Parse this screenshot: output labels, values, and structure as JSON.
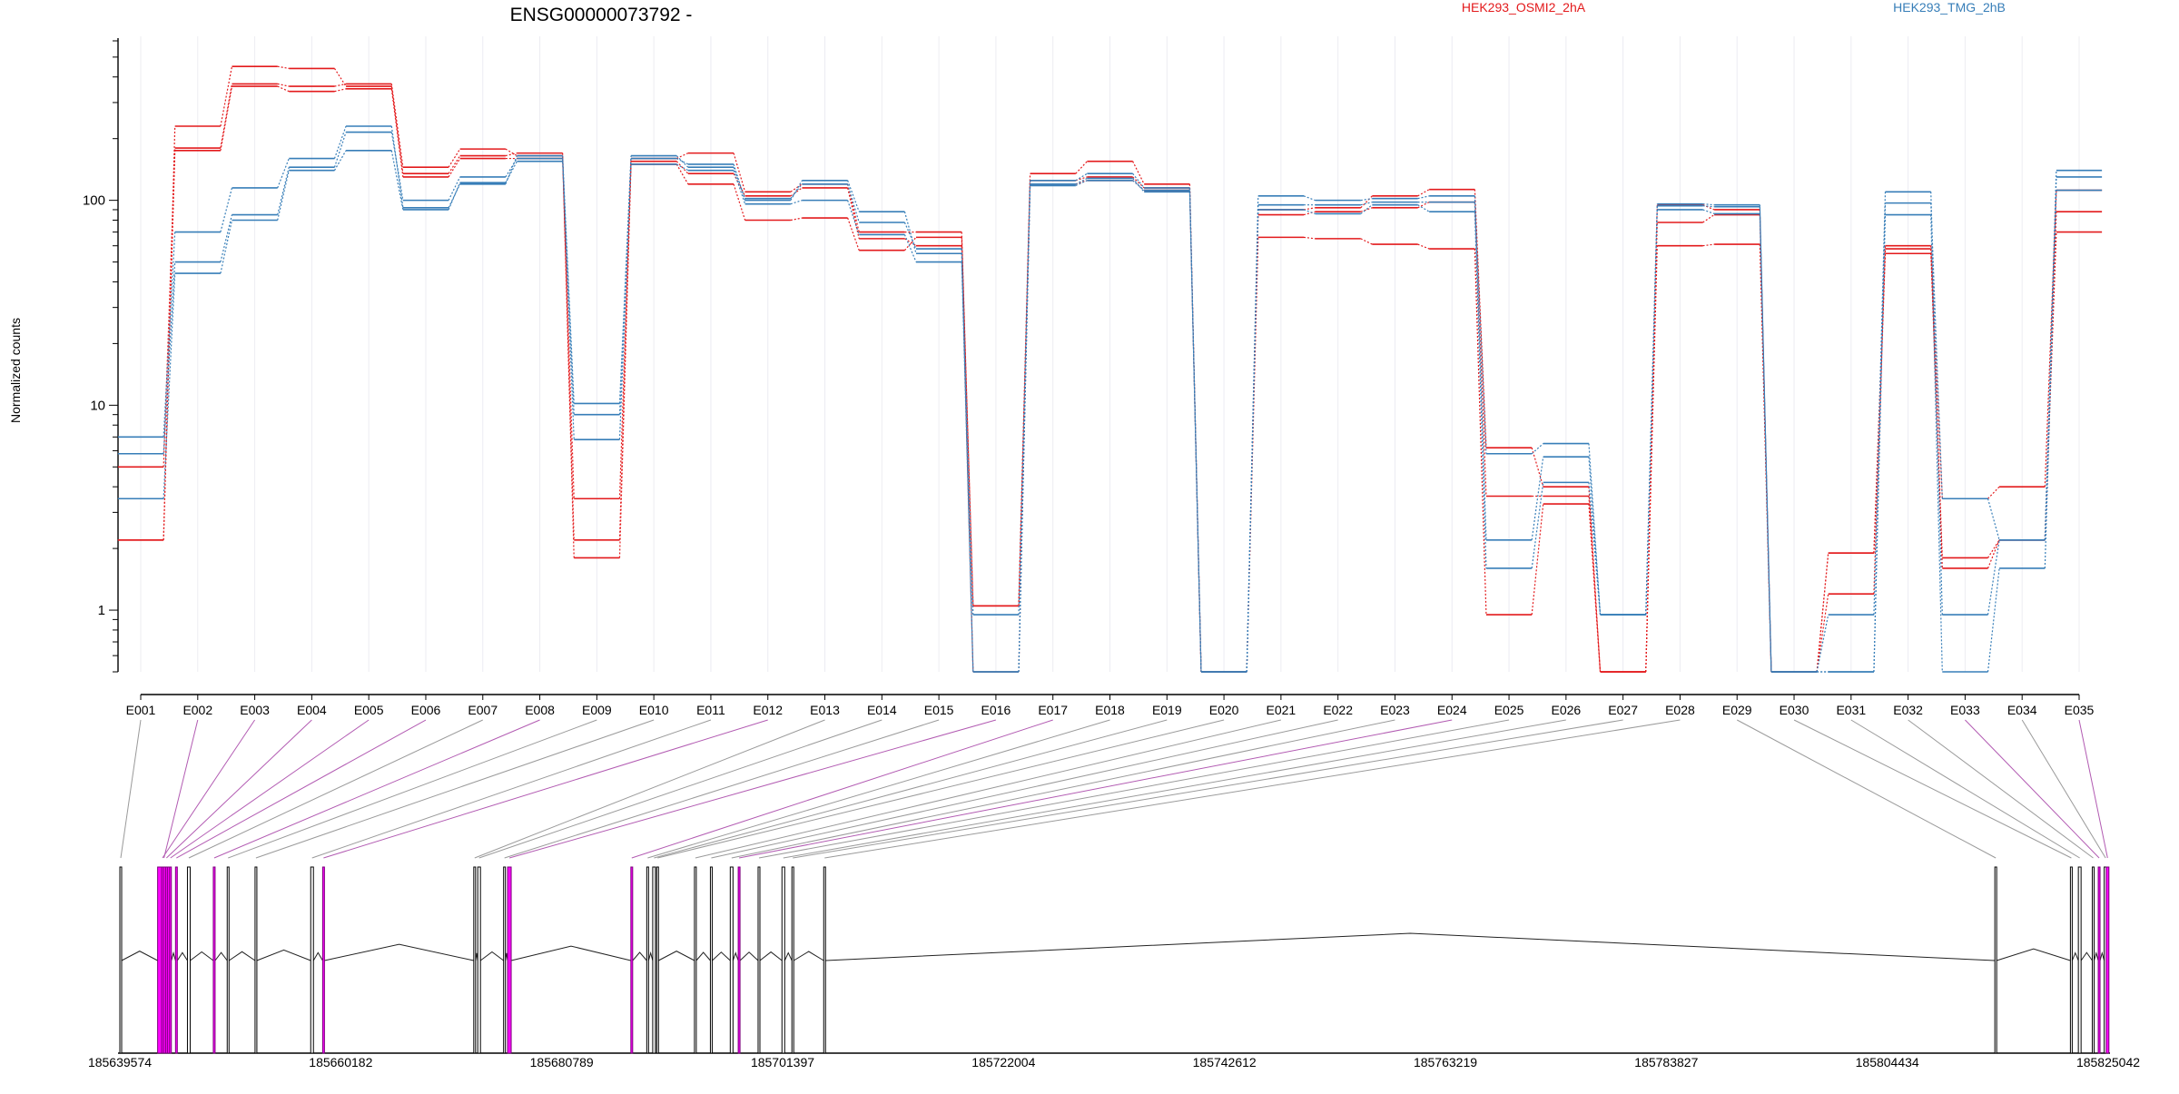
{
  "chart_data": {
    "type": "line",
    "title": "ENSG00000073792 -",
    "ylabel": "Normalized counts",
    "yscale": "log",
    "ylim": [
      0.5,
      600
    ],
    "yticks": [
      1,
      10,
      100
    ],
    "ytick_labels": [
      "1",
      "10",
      "100"
    ],
    "categories": [
      "E001",
      "E002",
      "E003",
      "E004",
      "E005",
      "E006",
      "E007",
      "E008",
      "E009",
      "E010",
      "E011",
      "E012",
      "E013",
      "E014",
      "E015",
      "E016",
      "E017",
      "E018",
      "E019",
      "E020",
      "E021",
      "E022",
      "E023",
      "E024",
      "E025",
      "E026",
      "E027",
      "E028",
      "E029",
      "E030",
      "E031",
      "E032",
      "E033",
      "E034",
      "E035"
    ],
    "legend": [
      {
        "name": "HEK293_OSMI2_2hA",
        "color": "#e31a1c"
      },
      {
        "name": "HEK293_TMG_2hB",
        "color": "#377eb8"
      }
    ],
    "series": [
      {
        "group": "HEK293_OSMI2_2hA",
        "color": "#e31a1c",
        "values": [
          2.2,
          230,
          450,
          440,
          360,
          135,
          165,
          170,
          1.8,
          150,
          120,
          80,
          82,
          57,
          66,
          1.05,
          120,
          125,
          112,
          0.5,
          66,
          65,
          61,
          58,
          0.95,
          3.3,
          0.5,
          60,
          61,
          0.5,
          1.9,
          55,
          1.6,
          2.2,
          70
        ]
      },
      {
        "group": "HEK293_OSMI2_2hA",
        "color": "#e31a1c",
        "values": [
          5.0,
          180,
          370,
          360,
          370,
          145,
          178,
          165,
          2.2,
          160,
          170,
          110,
          120,
          70,
          70,
          1.05,
          135,
          155,
          120,
          0.5,
          90,
          92,
          105,
          113,
          6.2,
          4.0,
          0.5,
          95,
          90,
          0.5,
          1.9,
          60,
          3.5,
          4.0,
          112
        ]
      },
      {
        "group": "HEK293_OSMI2_2hA",
        "color": "#e31a1c",
        "values": [
          2.2,
          175,
          360,
          340,
          350,
          130,
          160,
          160,
          3.5,
          155,
          135,
          105,
          115,
          65,
          60,
          0.5,
          125,
          130,
          115,
          0.5,
          85,
          88,
          92,
          98,
          3.6,
          3.6,
          0.5,
          78,
          85,
          0.5,
          1.2,
          58,
          1.8,
          2.2,
          88
        ]
      },
      {
        "group": "HEK293_TMG_2hB",
        "color": "#377eb8",
        "values": [
          7.0,
          70,
          115,
          160,
          230,
          92,
          120,
          165,
          10.2,
          160,
          150,
          100,
          125,
          88,
          55,
          0.95,
          125,
          135,
          115,
          0.5,
          105,
          100,
          102,
          105,
          2.2,
          5.6,
          0.95,
          96,
          95,
          0.5,
          0.95,
          110,
          0.95,
          2.2,
          140
        ]
      },
      {
        "group": "HEK293_TMG_2hB",
        "color": "#377eb8",
        "values": [
          5.8,
          50,
          85,
          145,
          215,
          100,
          130,
          160,
          9.0,
          165,
          145,
          102,
          120,
          78,
          58,
          0.5,
          120,
          128,
          110,
          0.5,
          95,
          95,
          98,
          98,
          5.8,
          6.5,
          0.95,
          94,
          93,
          0.5,
          0.5,
          97,
          3.5,
          2.2,
          130
        ]
      },
      {
        "group": "HEK293_TMG_2hB",
        "color": "#377eb8",
        "values": [
          3.5,
          44,
          80,
          140,
          175,
          90,
          122,
          155,
          6.8,
          150,
          140,
          96,
          100,
          68,
          50,
          0.5,
          118,
          125,
          112,
          0.5,
          90,
          86,
          95,
          88,
          1.6,
          4.2,
          0.95,
          90,
          86,
          0.5,
          0.5,
          85,
          0.5,
          1.6,
          112
        ]
      }
    ],
    "gene_model": {
      "coordinate_ticks": [
        "185639574",
        "185660182",
        "185680789",
        "185701397",
        "185722004",
        "185742612",
        "185763219",
        "185783827",
        "185804434",
        "185825042"
      ],
      "range": [
        185639574,
        185825042
      ],
      "exon_link_color": "#b25bb2",
      "exon_fill_color": "#ff00ff"
    }
  }
}
